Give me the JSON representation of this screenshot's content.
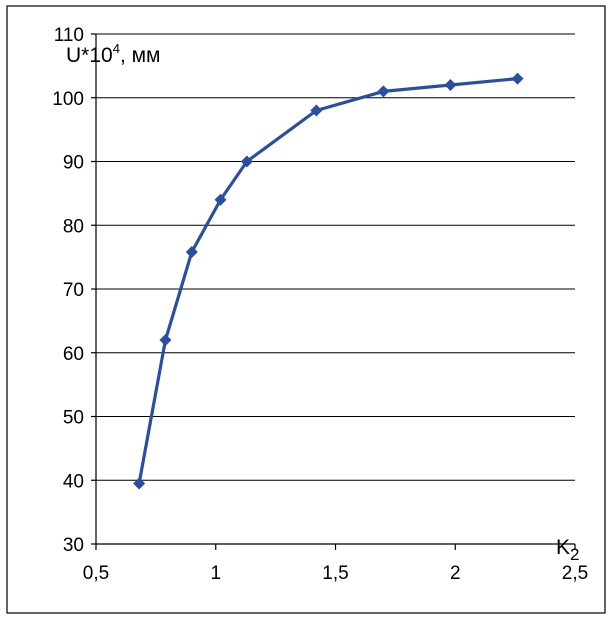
{
  "chart_data": {
    "type": "line",
    "title": "",
    "ylabel_main": "U*10",
    "ylabel_sup": "4",
    "ylabel_unit": ", мм",
    "xlabel_main": "K",
    "xlabel_sub": "2",
    "xlim": [
      0.5,
      2.5
    ],
    "ylim": [
      30,
      110
    ],
    "xticks": [
      "0,5",
      "1",
      "1,5",
      "2",
      "2,5"
    ],
    "xtick_values": [
      0.5,
      1,
      1.5,
      2,
      2.5
    ],
    "yticks": [
      "30",
      "40",
      "50",
      "60",
      "70",
      "80",
      "90",
      "100",
      "110"
    ],
    "ytick_values": [
      30,
      40,
      50,
      60,
      70,
      80,
      90,
      100,
      110
    ],
    "grid": "horizontal",
    "line_color": "#2a4fa0",
    "marker": "diamond",
    "series": [
      {
        "x": [
          0.68,
          0.79,
          0.9,
          1.02,
          1.13,
          1.42,
          1.7,
          1.98,
          2.26
        ],
        "y": [
          39.5,
          62,
          75.8,
          84,
          90,
          98,
          101,
          102,
          103
        ]
      }
    ]
  }
}
